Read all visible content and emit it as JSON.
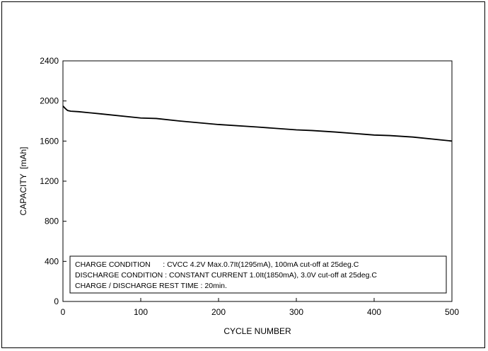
{
  "chart_data": {
    "type": "line",
    "title": "",
    "xlabel": "CYCLE NUMBER",
    "ylabel": "CAPACITY  [mAh]",
    "xlim": [
      0,
      500
    ],
    "ylim": [
      0,
      2400
    ],
    "x_ticks": [
      "0",
      "100",
      "200",
      "300",
      "400",
      "500"
    ],
    "y_ticks": [
      "0",
      "400",
      "800",
      "1200",
      "1600",
      "2000",
      "2400"
    ],
    "grid": false,
    "series": [
      {
        "x": [
          0,
          3,
          6,
          10,
          20,
          50,
          100,
          120,
          150,
          200,
          250,
          300,
          320,
          350,
          400,
          420,
          450,
          500
        ],
        "y": [
          1950,
          1925,
          1905,
          1898,
          1893,
          1870,
          1830,
          1825,
          1800,
          1765,
          1740,
          1712,
          1705,
          1690,
          1660,
          1655,
          1640,
          1600
        ]
      }
    ],
    "line_color": "#000000",
    "notes": [
      "CHARGE CONDITION      : CVCC 4.2V Max.0.7It(1295mA), 100mA cut-off at 25deg.C",
      "DISCHARGE CONDITION : CONSTANT CURRENT 1.0It(1850mA), 3.0V cut-off at 25deg.C",
      "CHARGE / DISCHARGE REST TIME : 20min."
    ]
  }
}
